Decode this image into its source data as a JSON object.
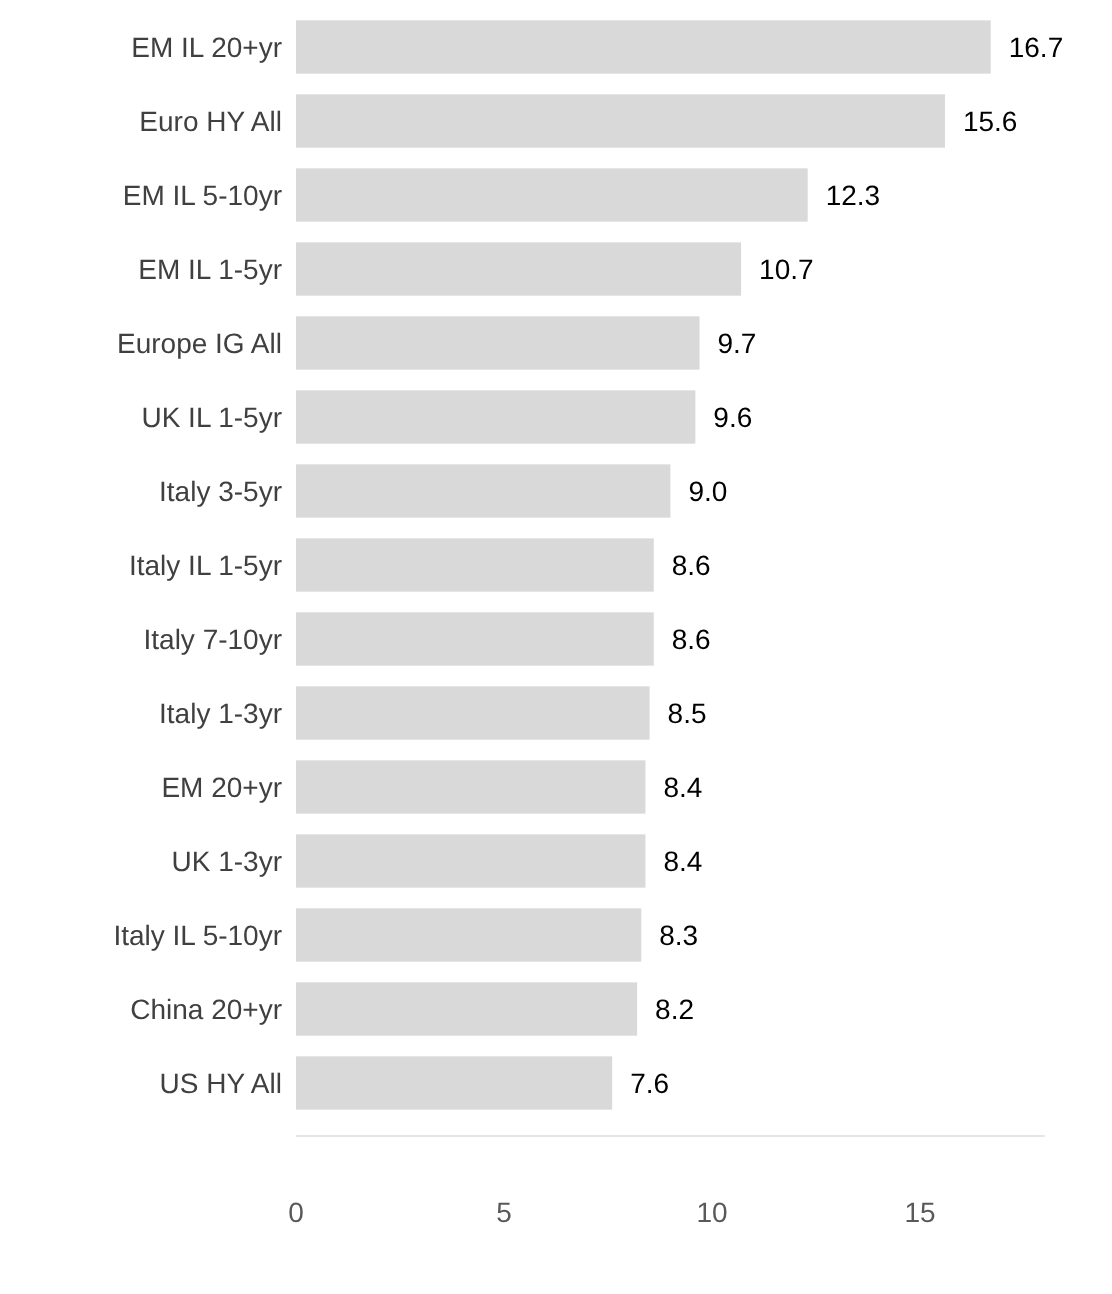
{
  "chart_data": {
    "type": "bar",
    "orientation": "horizontal",
    "categories": [
      "EM IL 20+yr",
      "Euro HY All",
      "EM IL 5-10yr",
      "EM IL 1-5yr",
      "Europe IG All",
      "UK IL 1-5yr",
      "Italy 3-5yr",
      "Italy IL 1-5yr",
      "Italy 7-10yr",
      "Italy 1-3yr",
      "EM 20+yr",
      "UK 1-3yr",
      "Italy IL 5-10yr",
      "China 20+yr",
      "US HY All"
    ],
    "values": [
      16.7,
      15.6,
      12.3,
      10.7,
      9.7,
      9.6,
      9.0,
      8.6,
      8.6,
      8.5,
      8.4,
      8.4,
      8.3,
      8.2,
      7.6
    ],
    "value_labels": [
      "16.7",
      "15.6",
      "12.3",
      "10.7",
      "9.7",
      "9.6",
      "9.0",
      "8.6",
      "8.6",
      "8.5",
      "8.4",
      "8.4",
      "8.3",
      "8.2",
      "7.6"
    ],
    "color": "#d9d9d9",
    "xlim": [
      0,
      18
    ],
    "xticks": [
      0,
      5,
      10,
      15
    ],
    "grid": false
  }
}
